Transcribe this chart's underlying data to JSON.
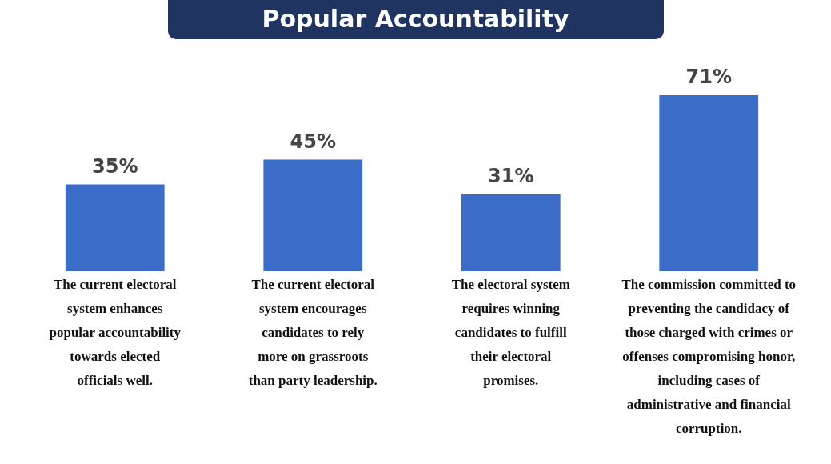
{
  "chart_data": {
    "type": "bar",
    "title": "Popular Accountability",
    "categories": [
      "The current electoral system enhances popular accountability towards elected officials well.",
      "The current electoral system encourages candidates to rely more on grassroots than party leadership.",
      "The electoral system requires winning candidates to fulfill their electoral promises.",
      "The commission committed to preventing the candidacy of those charged with crimes or offenses compromising honor, including cases of administrative and financial corruption."
    ],
    "values": [
      35,
      45,
      31,
      71
    ],
    "value_labels": [
      "35%",
      "45%",
      "31%",
      "71%"
    ],
    "color": "#3b6cc8"
  }
}
